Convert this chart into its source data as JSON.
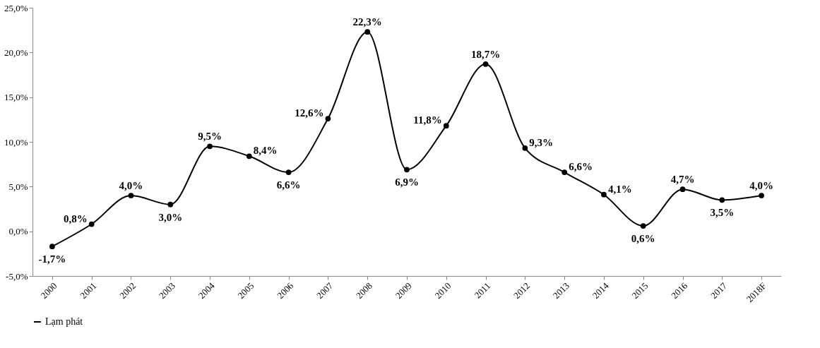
{
  "chart_data": {
    "type": "line",
    "categories": [
      "2000",
      "2001",
      "2002",
      "2003",
      "2004",
      "2005",
      "2006",
      "2007",
      "2008",
      "2009",
      "2010",
      "2011",
      "2012",
      "2013",
      "2014",
      "2015",
      "2016",
      "2017",
      "2018F"
    ],
    "series": [
      {
        "name": "Lạm phát",
        "color": "#000000",
        "values": [
          -1.7,
          0.8,
          4.0,
          3.0,
          9.5,
          8.4,
          6.6,
          12.6,
          22.3,
          6.9,
          11.8,
          18.7,
          9.3,
          6.6,
          4.1,
          0.6,
          4.7,
          3.5,
          4.0
        ],
        "value_labels": [
          "-1,7%",
          "0,8%",
          "4,0%",
          "3,0%",
          "9,5%",
          "8,4%",
          "6,6%",
          "12,6%",
          "22,3%",
          "6,9%",
          "11,8%",
          "18,7%",
          "9,3%",
          "6,6%",
          "4,1%",
          "0,6%",
          "4,7%",
          "3,5%",
          "4,0%"
        ]
      }
    ],
    "ylim": [
      -5,
      25
    ],
    "yticks": [
      {
        "value": -5,
        "label": "-5,0%"
      },
      {
        "value": 0,
        "label": "0,0%"
      },
      {
        "value": 5,
        "label": "5,0%"
      },
      {
        "value": 10,
        "label": "10,0%"
      },
      {
        "value": 15,
        "label": "15,0%"
      },
      {
        "value": 20,
        "label": "20,0%"
      },
      {
        "value": 25,
        "label": "25,0%"
      }
    ],
    "grid": false,
    "legend": "bottom",
    "marker": "circle",
    "line_style": "solid"
  }
}
